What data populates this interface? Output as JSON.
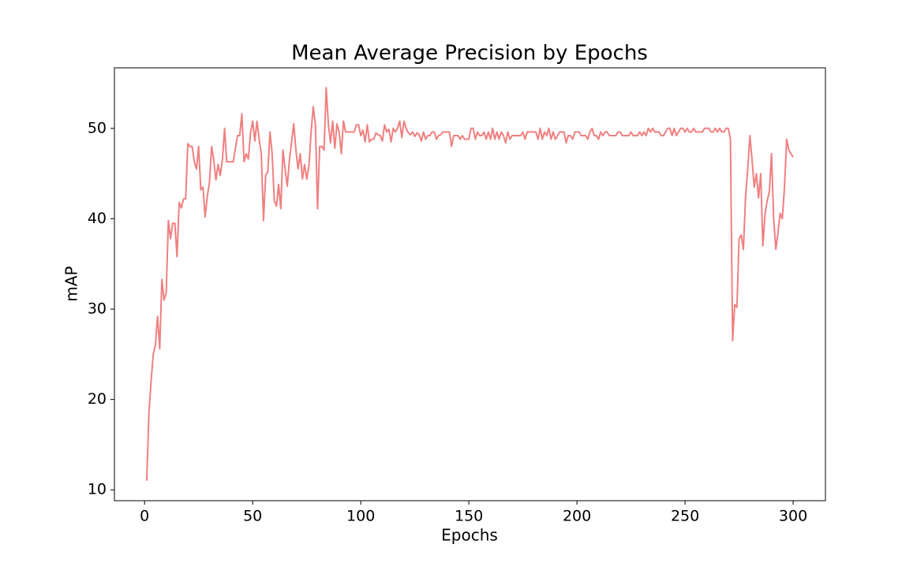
{
  "chart_data": {
    "type": "line",
    "title": "Mean Average Precision by Epochs",
    "x_label": "Epochs",
    "y_label": "mAP",
    "color": "#f08080",
    "x": [
      1,
      2,
      3,
      4,
      5,
      6,
      7,
      8,
      9,
      10,
      11,
      12,
      13,
      14,
      15,
      16,
      17,
      18,
      19,
      20,
      21,
      22,
      23,
      24,
      25,
      26,
      27,
      28,
      29,
      30,
      31,
      32,
      33,
      34,
      35,
      36,
      37,
      38,
      39,
      40,
      41,
      42,
      43,
      44,
      45,
      46,
      47,
      48,
      49,
      50,
      51,
      52,
      53,
      54,
      55,
      56,
      57,
      58,
      59,
      60,
      61,
      62,
      63,
      64,
      65,
      66,
      67,
      68,
      69,
      70,
      71,
      72,
      73,
      74,
      75,
      76,
      77,
      78,
      79,
      80,
      81,
      82,
      83,
      84,
      85,
      86,
      87,
      88,
      89,
      90,
      91,
      92,
      93,
      94,
      95,
      96,
      97,
      98,
      99,
      100,
      101,
      102,
      103,
      104,
      105,
      106,
      107,
      108,
      109,
      110,
      111,
      112,
      113,
      114,
      115,
      116,
      117,
      118,
      119,
      120,
      121,
      122,
      123,
      124,
      125,
      126,
      127,
      128,
      129,
      130,
      131,
      132,
      133,
      134,
      135,
      136,
      137,
      138,
      139,
      140,
      141,
      142,
      143,
      144,
      145,
      146,
      147,
      148,
      149,
      150,
      151,
      152,
      153,
      154,
      155,
      156,
      157,
      158,
      159,
      160,
      161,
      162,
      163,
      164,
      165,
      166,
      167,
      168,
      169,
      170,
      171,
      172,
      173,
      174,
      175,
      176,
      177,
      178,
      179,
      180,
      181,
      182,
      183,
      184,
      185,
      186,
      187,
      188,
      189,
      190,
      191,
      192,
      193,
      194,
      195,
      196,
      197,
      198,
      199,
      200,
      201,
      202,
      203,
      204,
      205,
      206,
      207,
      208,
      209,
      210,
      211,
      212,
      213,
      214,
      215,
      216,
      217,
      218,
      219,
      220,
      221,
      222,
      223,
      224,
      225,
      226,
      227,
      228,
      229,
      230,
      231,
      232,
      233,
      234,
      235,
      236,
      237,
      238,
      239,
      240,
      241,
      242,
      243,
      244,
      245,
      246,
      247,
      248,
      249,
      250,
      251,
      252,
      253,
      254,
      255,
      256,
      257,
      258,
      259,
      260,
      261,
      262,
      263,
      264,
      265,
      266,
      267,
      268,
      269,
      270,
      271,
      272,
      273,
      274,
      275,
      276,
      277,
      278,
      279,
      280,
      281,
      282,
      283,
      284,
      285,
      286,
      287,
      288,
      289,
      290,
      291,
      292,
      293,
      294,
      295,
      296,
      297,
      298,
      299,
      300
    ],
    "values": [
      11,
      18.5,
      22,
      25,
      26,
      29.2,
      25.6,
      33.3,
      31,
      31.8,
      39.8,
      37.8,
      39.5,
      39.5,
      35.8,
      41.8,
      41.2,
      42.2,
      42.2,
      48.3,
      48,
      48,
      46.3,
      45.5,
      48,
      43.2,
      43.5,
      40.2,
      42.5,
      44,
      48,
      46.5,
      44.3,
      46,
      44.8,
      46.5,
      50,
      46.3,
      46.3,
      46.3,
      46.3,
      47.8,
      49.2,
      49.2,
      51.6,
      46.3,
      47.2,
      46.6,
      49.5,
      50.8,
      48.6,
      50.8,
      48.8,
      47.2,
      39.8,
      44.8,
      45.2,
      49.6,
      47.2,
      42,
      41.4,
      43.8,
      41.1,
      47.6,
      45.5,
      43.6,
      46.5,
      48.5,
      50.5,
      47.6,
      45.5,
      47.2,
      44.4,
      46,
      44.4,
      45.8,
      49.5,
      52.4,
      50.5,
      41.1,
      48,
      48,
      47.6,
      54.5,
      50.5,
      48.4,
      50.8,
      47.8,
      50.5,
      49.6,
      47.2,
      50.8,
      49.6,
      49.6,
      49.6,
      49.6,
      49.6,
      50.4,
      50.4,
      49.2,
      49.8,
      48.5,
      50.4,
      48.5,
      48.8,
      48.8,
      49.5,
      49.3,
      49.2,
      48.6,
      50.4,
      49.6,
      49.9,
      48.5,
      50,
      49.6,
      50,
      50.8,
      49,
      50.8,
      50,
      49.5,
      49.3,
      49.6,
      49.1,
      49.5,
      49.3,
      48.6,
      49.6,
      48.8,
      49.2,
      49.2,
      49.6,
      49.6,
      48.8,
      49.2,
      49.3,
      49.6,
      49.6,
      49.6,
      49.6,
      48,
      49.2,
      49.2,
      49.2,
      48.8,
      49.2,
      48.8,
      48.8,
      48.8,
      50,
      50,
      48.8,
      49.6,
      49.2,
      49.2,
      49.6,
      48.8,
      49.6,
      48.8,
      50,
      48.8,
      49.6,
      48.8,
      49.6,
      49.2,
      48.4,
      49.6,
      48.8,
      49.2,
      49.2,
      49.2,
      49.2,
      49.2,
      49.6,
      48.8,
      49.6,
      49.6,
      49.6,
      49.6,
      49.6,
      48.8,
      50,
      48.8,
      49.6,
      49.2,
      50,
      48.8,
      49.6,
      48.8,
      49.2,
      49.6,
      49.6,
      49.6,
      48.4,
      49.2,
      49.2,
      48.8,
      49.6,
      49.6,
      49.6,
      49.2,
      49.2,
      49.2,
      48.8,
      49.6,
      50,
      49.2,
      49.2,
      48.8,
      49.6,
      49.2,
      49.6,
      49.6,
      49.2,
      49.2,
      49.2,
      49.2,
      49.6,
      49.6,
      49.2,
      49.2,
      49.2,
      49.2,
      49.6,
      49.2,
      49.2,
      49.2,
      49.6,
      49.2,
      49.6,
      49.2,
      50,
      49.6,
      50,
      49.6,
      49.6,
      49.6,
      49.2,
      49.2,
      49.6,
      50,
      50,
      49.2,
      50,
      49.2,
      49.6,
      50,
      50,
      49.6,
      50,
      49.6,
      49.6,
      50,
      49.6,
      49.6,
      49.6,
      49.6,
      50,
      50,
      50,
      49.6,
      49.6,
      50,
      49.6,
      50,
      49.6,
      49.6,
      50,
      50,
      48.8,
      26.5,
      30.5,
      30.2,
      37.8,
      38.2,
      36.6,
      42.5,
      45.5,
      49.2,
      46.5,
      43.5,
      45,
      42.3,
      45,
      37,
      40.5,
      42,
      43,
      47.2,
      40,
      36.6,
      38.5,
      40.6,
      40,
      43.5,
      48.8,
      47.6,
      47.2,
      46.8
    ],
    "xlim": [
      -13.95,
      314.95
    ],
    "xticks": [
      0,
      50,
      100,
      150,
      200,
      250,
      300
    ],
    "ylim": [
      8.8,
      56.7
    ],
    "yticks": [
      10,
      20,
      30,
      40,
      50
    ]
  }
}
